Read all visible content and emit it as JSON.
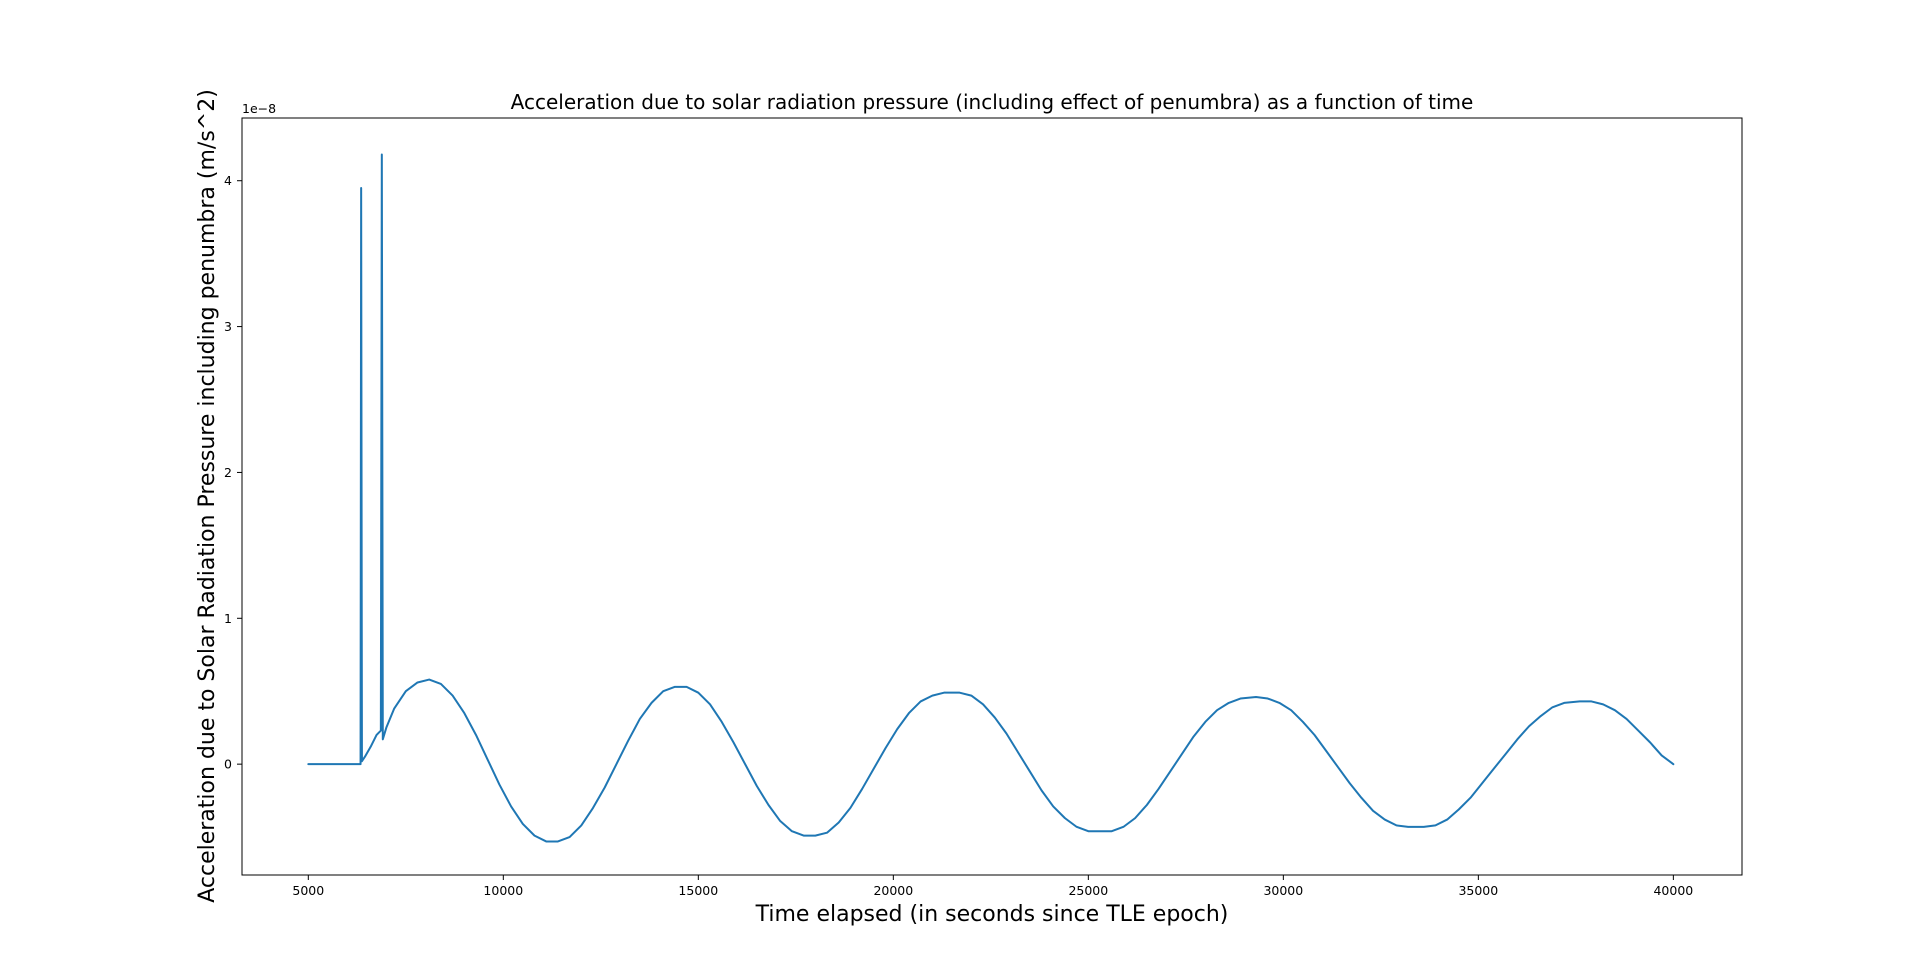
{
  "chart_data": {
    "type": "line",
    "title": "Acceleration due to solar radiation pressure (including effect of penumbra) as a function of time",
    "xlabel": "Time elapsed (in seconds since TLE epoch)",
    "ylabel": "Acceleration due to Solar Radiation Pressure including penumbra (m/s^2)",
    "y_offset_label": "1e−8",
    "xlim": [
      3300,
      41760
    ],
    "ylim": [
      -0.76,
      4.43
    ],
    "x_ticks": [
      5000,
      10000,
      15000,
      20000,
      25000,
      30000,
      35000,
      40000
    ],
    "x_tick_labels": [
      "5000",
      "10000",
      "15000",
      "20000",
      "25000",
      "30000",
      "35000",
      "40000"
    ],
    "y_ticks": [
      0,
      1,
      2,
      3,
      4
    ],
    "y_tick_labels": [
      "0",
      "1",
      "2",
      "3",
      "4"
    ],
    "y_scale_note": "values in units of 1e-8 m/s^2",
    "grid": false,
    "line_color": "#1f77b4",
    "series": [
      {
        "points": [
          [
            5000,
            0.0
          ],
          [
            6300,
            0.0
          ],
          [
            6340,
            0.0
          ],
          [
            6355,
            3.95
          ],
          [
            6375,
            0.02
          ],
          [
            6450,
            0.05
          ],
          [
            6600,
            0.12
          ],
          [
            6750,
            0.2
          ],
          [
            6860,
            0.23
          ],
          [
            6885,
            4.18
          ],
          [
            6910,
            0.17
          ],
          [
            7000,
            0.25
          ],
          [
            7200,
            0.38
          ],
          [
            7500,
            0.5
          ],
          [
            7800,
            0.56
          ],
          [
            8100,
            0.58
          ],
          [
            8400,
            0.55
          ],
          [
            8700,
            0.47
          ],
          [
            9000,
            0.35
          ],
          [
            9300,
            0.2
          ],
          [
            9600,
            0.03
          ],
          [
            9900,
            -0.14
          ],
          [
            10200,
            -0.29
          ],
          [
            10500,
            -0.41
          ],
          [
            10800,
            -0.49
          ],
          [
            11100,
            -0.53
          ],
          [
            11400,
            -0.53
          ],
          [
            11700,
            -0.5
          ],
          [
            12000,
            -0.42
          ],
          [
            12300,
            -0.3
          ],
          [
            12600,
            -0.16
          ],
          [
            12900,
            0.0
          ],
          [
            13200,
            0.16
          ],
          [
            13500,
            0.31
          ],
          [
            13800,
            0.42
          ],
          [
            14100,
            0.5
          ],
          [
            14400,
            0.53
          ],
          [
            14700,
            0.53
          ],
          [
            15000,
            0.49
          ],
          [
            15300,
            0.41
          ],
          [
            15600,
            0.29
          ],
          [
            15900,
            0.15
          ],
          [
            16200,
            0.0
          ],
          [
            16500,
            -0.15
          ],
          [
            16800,
            -0.28
          ],
          [
            17100,
            -0.39
          ],
          [
            17400,
            -0.46
          ],
          [
            17700,
            -0.49
          ],
          [
            18000,
            -0.49
          ],
          [
            18300,
            -0.47
          ],
          [
            18600,
            -0.4
          ],
          [
            18900,
            -0.3
          ],
          [
            19200,
            -0.17
          ],
          [
            19500,
            -0.03
          ],
          [
            19800,
            0.11
          ],
          [
            20100,
            0.24
          ],
          [
            20400,
            0.35
          ],
          [
            20700,
            0.43
          ],
          [
            21000,
            0.47
          ],
          [
            21300,
            0.49
          ],
          [
            21700,
            0.49
          ],
          [
            22000,
            0.47
          ],
          [
            22300,
            0.41
          ],
          [
            22600,
            0.32
          ],
          [
            22900,
            0.21
          ],
          [
            23200,
            0.08
          ],
          [
            23500,
            -0.05
          ],
          [
            23800,
            -0.18
          ],
          [
            24100,
            -0.29
          ],
          [
            24400,
            -0.37
          ],
          [
            24700,
            -0.43
          ],
          [
            25000,
            -0.46
          ],
          [
            25300,
            -0.46
          ],
          [
            25600,
            -0.46
          ],
          [
            25900,
            -0.43
          ],
          [
            26200,
            -0.37
          ],
          [
            26500,
            -0.28
          ],
          [
            26800,
            -0.17
          ],
          [
            27100,
            -0.05
          ],
          [
            27400,
            0.07
          ],
          [
            27700,
            0.19
          ],
          [
            28000,
            0.29
          ],
          [
            28300,
            0.37
          ],
          [
            28600,
            0.42
          ],
          [
            28900,
            0.45
          ],
          [
            29300,
            0.46
          ],
          [
            29600,
            0.45
          ],
          [
            29900,
            0.42
          ],
          [
            30200,
            0.37
          ],
          [
            30500,
            0.29
          ],
          [
            30800,
            0.2
          ],
          [
            31100,
            0.09
          ],
          [
            31400,
            -0.02
          ],
          [
            31700,
            -0.13
          ],
          [
            32000,
            -0.23
          ],
          [
            32300,
            -0.32
          ],
          [
            32600,
            -0.38
          ],
          [
            32900,
            -0.42
          ],
          [
            33200,
            -0.43
          ],
          [
            33600,
            -0.43
          ],
          [
            33900,
            -0.42
          ],
          [
            34200,
            -0.38
          ],
          [
            34500,
            -0.31
          ],
          [
            34800,
            -0.23
          ],
          [
            35100,
            -0.13
          ],
          [
            35400,
            -0.03
          ],
          [
            35700,
            0.07
          ],
          [
            36000,
            0.17
          ],
          [
            36300,
            0.26
          ],
          [
            36600,
            0.33
          ],
          [
            36900,
            0.39
          ],
          [
            37200,
            0.42
          ],
          [
            37600,
            0.43
          ],
          [
            37900,
            0.43
          ],
          [
            38200,
            0.41
          ],
          [
            38500,
            0.37
          ],
          [
            38800,
            0.31
          ],
          [
            39100,
            0.23
          ],
          [
            39400,
            0.15
          ],
          [
            39700,
            0.06
          ],
          [
            40000,
            0.0
          ]
        ]
      }
    ]
  }
}
